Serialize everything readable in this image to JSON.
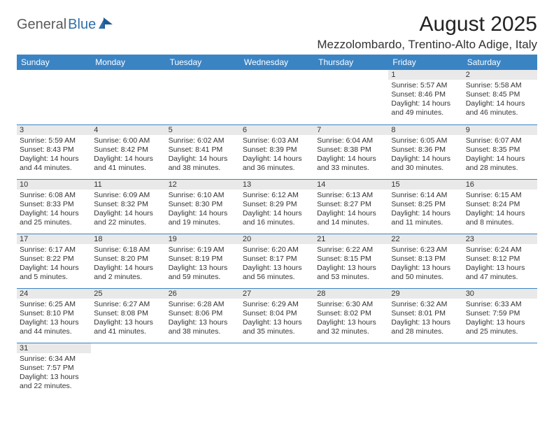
{
  "logo": {
    "part1": "General",
    "part2": "Blue"
  },
  "title": "August 2025",
  "location": "Mezzolombardo, Trentino-Alto Adige, Italy",
  "colors": {
    "header_bg": "#3b84c4",
    "header_text": "#ffffff",
    "daynum_bg": "#e9e9e9",
    "cell_border": "#3b84c4",
    "logo_gray": "#5a5a5a",
    "logo_blue": "#2f6fa8"
  },
  "daynames": [
    "Sunday",
    "Monday",
    "Tuesday",
    "Wednesday",
    "Thursday",
    "Friday",
    "Saturday"
  ],
  "weeks": [
    [
      {
        "day": "",
        "sunrise": "",
        "sunset": "",
        "daylight1": "",
        "daylight2": ""
      },
      {
        "day": "",
        "sunrise": "",
        "sunset": "",
        "daylight1": "",
        "daylight2": ""
      },
      {
        "day": "",
        "sunrise": "",
        "sunset": "",
        "daylight1": "",
        "daylight2": ""
      },
      {
        "day": "",
        "sunrise": "",
        "sunset": "",
        "daylight1": "",
        "daylight2": ""
      },
      {
        "day": "",
        "sunrise": "",
        "sunset": "",
        "daylight1": "",
        "daylight2": ""
      },
      {
        "day": "1",
        "sunrise": "Sunrise: 5:57 AM",
        "sunset": "Sunset: 8:46 PM",
        "daylight1": "Daylight: 14 hours",
        "daylight2": "and 49 minutes."
      },
      {
        "day": "2",
        "sunrise": "Sunrise: 5:58 AM",
        "sunset": "Sunset: 8:45 PM",
        "daylight1": "Daylight: 14 hours",
        "daylight2": "and 46 minutes."
      }
    ],
    [
      {
        "day": "3",
        "sunrise": "Sunrise: 5:59 AM",
        "sunset": "Sunset: 8:43 PM",
        "daylight1": "Daylight: 14 hours",
        "daylight2": "and 44 minutes."
      },
      {
        "day": "4",
        "sunrise": "Sunrise: 6:00 AM",
        "sunset": "Sunset: 8:42 PM",
        "daylight1": "Daylight: 14 hours",
        "daylight2": "and 41 minutes."
      },
      {
        "day": "5",
        "sunrise": "Sunrise: 6:02 AM",
        "sunset": "Sunset: 8:41 PM",
        "daylight1": "Daylight: 14 hours",
        "daylight2": "and 38 minutes."
      },
      {
        "day": "6",
        "sunrise": "Sunrise: 6:03 AM",
        "sunset": "Sunset: 8:39 PM",
        "daylight1": "Daylight: 14 hours",
        "daylight2": "and 36 minutes."
      },
      {
        "day": "7",
        "sunrise": "Sunrise: 6:04 AM",
        "sunset": "Sunset: 8:38 PM",
        "daylight1": "Daylight: 14 hours",
        "daylight2": "and 33 minutes."
      },
      {
        "day": "8",
        "sunrise": "Sunrise: 6:05 AM",
        "sunset": "Sunset: 8:36 PM",
        "daylight1": "Daylight: 14 hours",
        "daylight2": "and 30 minutes."
      },
      {
        "day": "9",
        "sunrise": "Sunrise: 6:07 AM",
        "sunset": "Sunset: 8:35 PM",
        "daylight1": "Daylight: 14 hours",
        "daylight2": "and 28 minutes."
      }
    ],
    [
      {
        "day": "10",
        "sunrise": "Sunrise: 6:08 AM",
        "sunset": "Sunset: 8:33 PM",
        "daylight1": "Daylight: 14 hours",
        "daylight2": "and 25 minutes."
      },
      {
        "day": "11",
        "sunrise": "Sunrise: 6:09 AM",
        "sunset": "Sunset: 8:32 PM",
        "daylight1": "Daylight: 14 hours",
        "daylight2": "and 22 minutes."
      },
      {
        "day": "12",
        "sunrise": "Sunrise: 6:10 AM",
        "sunset": "Sunset: 8:30 PM",
        "daylight1": "Daylight: 14 hours",
        "daylight2": "and 19 minutes."
      },
      {
        "day": "13",
        "sunrise": "Sunrise: 6:12 AM",
        "sunset": "Sunset: 8:29 PM",
        "daylight1": "Daylight: 14 hours",
        "daylight2": "and 16 minutes."
      },
      {
        "day": "14",
        "sunrise": "Sunrise: 6:13 AM",
        "sunset": "Sunset: 8:27 PM",
        "daylight1": "Daylight: 14 hours",
        "daylight2": "and 14 minutes."
      },
      {
        "day": "15",
        "sunrise": "Sunrise: 6:14 AM",
        "sunset": "Sunset: 8:25 PM",
        "daylight1": "Daylight: 14 hours",
        "daylight2": "and 11 minutes."
      },
      {
        "day": "16",
        "sunrise": "Sunrise: 6:15 AM",
        "sunset": "Sunset: 8:24 PM",
        "daylight1": "Daylight: 14 hours",
        "daylight2": "and 8 minutes."
      }
    ],
    [
      {
        "day": "17",
        "sunrise": "Sunrise: 6:17 AM",
        "sunset": "Sunset: 8:22 PM",
        "daylight1": "Daylight: 14 hours",
        "daylight2": "and 5 minutes."
      },
      {
        "day": "18",
        "sunrise": "Sunrise: 6:18 AM",
        "sunset": "Sunset: 8:20 PM",
        "daylight1": "Daylight: 14 hours",
        "daylight2": "and 2 minutes."
      },
      {
        "day": "19",
        "sunrise": "Sunrise: 6:19 AM",
        "sunset": "Sunset: 8:19 PM",
        "daylight1": "Daylight: 13 hours",
        "daylight2": "and 59 minutes."
      },
      {
        "day": "20",
        "sunrise": "Sunrise: 6:20 AM",
        "sunset": "Sunset: 8:17 PM",
        "daylight1": "Daylight: 13 hours",
        "daylight2": "and 56 minutes."
      },
      {
        "day": "21",
        "sunrise": "Sunrise: 6:22 AM",
        "sunset": "Sunset: 8:15 PM",
        "daylight1": "Daylight: 13 hours",
        "daylight2": "and 53 minutes."
      },
      {
        "day": "22",
        "sunrise": "Sunrise: 6:23 AM",
        "sunset": "Sunset: 8:13 PM",
        "daylight1": "Daylight: 13 hours",
        "daylight2": "and 50 minutes."
      },
      {
        "day": "23",
        "sunrise": "Sunrise: 6:24 AM",
        "sunset": "Sunset: 8:12 PM",
        "daylight1": "Daylight: 13 hours",
        "daylight2": "and 47 minutes."
      }
    ],
    [
      {
        "day": "24",
        "sunrise": "Sunrise: 6:25 AM",
        "sunset": "Sunset: 8:10 PM",
        "daylight1": "Daylight: 13 hours",
        "daylight2": "and 44 minutes."
      },
      {
        "day": "25",
        "sunrise": "Sunrise: 6:27 AM",
        "sunset": "Sunset: 8:08 PM",
        "daylight1": "Daylight: 13 hours",
        "daylight2": "and 41 minutes."
      },
      {
        "day": "26",
        "sunrise": "Sunrise: 6:28 AM",
        "sunset": "Sunset: 8:06 PM",
        "daylight1": "Daylight: 13 hours",
        "daylight2": "and 38 minutes."
      },
      {
        "day": "27",
        "sunrise": "Sunrise: 6:29 AM",
        "sunset": "Sunset: 8:04 PM",
        "daylight1": "Daylight: 13 hours",
        "daylight2": "and 35 minutes."
      },
      {
        "day": "28",
        "sunrise": "Sunrise: 6:30 AM",
        "sunset": "Sunset: 8:02 PM",
        "daylight1": "Daylight: 13 hours",
        "daylight2": "and 32 minutes."
      },
      {
        "day": "29",
        "sunrise": "Sunrise: 6:32 AM",
        "sunset": "Sunset: 8:01 PM",
        "daylight1": "Daylight: 13 hours",
        "daylight2": "and 28 minutes."
      },
      {
        "day": "30",
        "sunrise": "Sunrise: 6:33 AM",
        "sunset": "Sunset: 7:59 PM",
        "daylight1": "Daylight: 13 hours",
        "daylight2": "and 25 minutes."
      }
    ],
    [
      {
        "day": "31",
        "sunrise": "Sunrise: 6:34 AM",
        "sunset": "Sunset: 7:57 PM",
        "daylight1": "Daylight: 13 hours",
        "daylight2": "and 22 minutes."
      },
      {
        "day": "",
        "sunrise": "",
        "sunset": "",
        "daylight1": "",
        "daylight2": ""
      },
      {
        "day": "",
        "sunrise": "",
        "sunset": "",
        "daylight1": "",
        "daylight2": ""
      },
      {
        "day": "",
        "sunrise": "",
        "sunset": "",
        "daylight1": "",
        "daylight2": ""
      },
      {
        "day": "",
        "sunrise": "",
        "sunset": "",
        "daylight1": "",
        "daylight2": ""
      },
      {
        "day": "",
        "sunrise": "",
        "sunset": "",
        "daylight1": "",
        "daylight2": ""
      },
      {
        "day": "",
        "sunrise": "",
        "sunset": "",
        "daylight1": "",
        "daylight2": ""
      }
    ]
  ]
}
